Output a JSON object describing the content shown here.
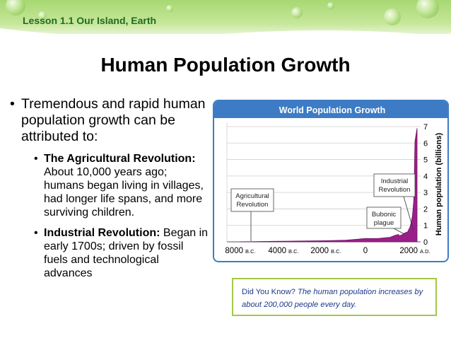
{
  "header": {
    "lesson": "Lesson 1.1 Our Island, Earth"
  },
  "title": "Human Population Growth",
  "bullets": {
    "main": "Tremendous and rapid human population growth can be attributed to:",
    "agri_bold": "The Agricultural Revolution:",
    "agri_text": " About 10,000 years ago; humans began living in villages, had longer life spans, and more surviving children.",
    "ind_bold": "Industrial Revolution:",
    "ind_text": " Began in early 1700s; driven by fossil fuels and technological advances"
  },
  "did_you_know": {
    "label": "Did You Know?",
    "text": "The human population increases by about 200,000 people every day."
  },
  "chart_data": {
    "type": "area",
    "title": "World Population Growth",
    "xlabel": "",
    "ylabel": "Human population (billions)",
    "y_axis_position": "right",
    "grid": true,
    "ylim": [
      0,
      7
    ],
    "y_ticks": [
      "0",
      "1",
      "2",
      "3",
      "4",
      "5",
      "6",
      "7"
    ],
    "x_ticks": [
      {
        "value": -8000,
        "label": "8000",
        "era": "B.C."
      },
      {
        "value": -4000,
        "label": "4000",
        "era": "B.C."
      },
      {
        "value": -2000,
        "label": "2000",
        "era": "B.C."
      },
      {
        "value": 0,
        "label": "0",
        "era": ""
      },
      {
        "value": 2000,
        "label": "2000",
        "era": "A.D."
      }
    ],
    "x": [
      -8000,
      -7000,
      -6000,
      -5000,
      -4000,
      -3000,
      -2000,
      -1000,
      0,
      500,
      1000,
      1200,
      1340,
      1350,
      1400,
      1500,
      1600,
      1700,
      1800,
      1850,
      1900,
      1950,
      1975,
      2000,
      2010
    ],
    "series": [
      {
        "values": [
          0.005,
          0.01,
          0.02,
          0.03,
          0.04,
          0.05,
          0.07,
          0.1,
          0.2,
          0.2,
          0.28,
          0.4,
          0.45,
          0.37,
          0.38,
          0.45,
          0.55,
          0.6,
          0.9,
          1.2,
          1.6,
          2.5,
          4.0,
          6.1,
          6.9
        ]
      }
    ],
    "annotations": [
      {
        "text": "Agricultural Revolution",
        "x": -8000
      },
      {
        "text": "Bubonic plague",
        "x": 1350
      },
      {
        "text": "Industrial Revolution",
        "x": 1750
      }
    ]
  }
}
